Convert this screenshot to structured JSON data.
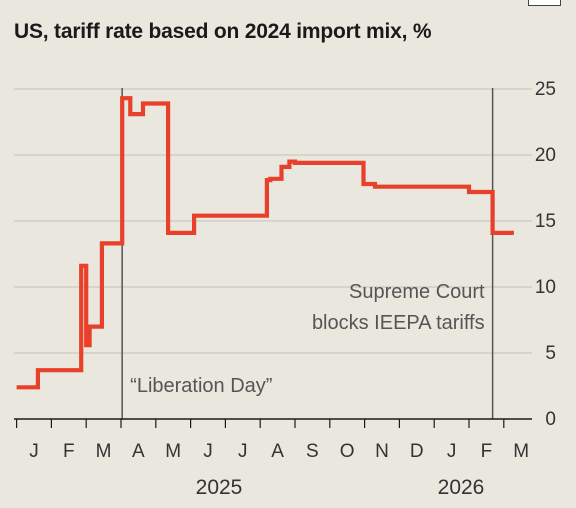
{
  "chart_data": {
    "type": "line",
    "title": "US, tariff rate based on 2024 import mix, %",
    "ylim": [
      0,
      25
    ],
    "y_ticks": [
      "0",
      "5",
      "10",
      "15",
      "20",
      "25"
    ],
    "x_ticks": [
      "J",
      "F",
      "M",
      "A",
      "M",
      "J",
      "J",
      "A",
      "S",
      "O",
      "N",
      "D",
      "J",
      "F",
      "M"
    ],
    "years": [
      "2025",
      "2026"
    ],
    "grid": "horizontal",
    "color": "#e8402b",
    "series": [
      {
        "x": [
          "2025-01-01",
          "2025-01-20",
          "2025-01-20",
          "2025-02-04",
          "2025-02-04",
          "2025-02-25",
          "2025-02-25",
          "2025-03-01",
          "2025-03-01",
          "2025-03-04",
          "2025-03-04",
          "2025-03-06",
          "2025-03-06",
          "2025-03-07",
          "2025-03-07",
          "2025-03-12",
          "2025-03-12",
          "2025-03-15",
          "2025-03-15",
          "2025-04-02",
          "2025-04-02",
          "2025-04-09",
          "2025-04-09",
          "2025-04-12",
          "2025-04-12",
          "2025-04-20",
          "2025-04-20",
          "2025-04-26",
          "2025-04-26",
          "2025-05-12",
          "2025-05-12",
          "2025-06-04",
          "2025-06-04",
          "2025-07-31",
          "2025-07-31",
          "2025-08-07",
          "2025-08-07",
          "2025-08-10",
          "2025-08-10",
          "2025-08-20",
          "2025-08-20",
          "2025-08-27",
          "2025-08-27",
          "2025-09-01",
          "2025-09-01",
          "2025-10-31",
          "2025-10-31",
          "2025-11-10",
          "2025-11-10",
          "2026-02-01",
          "2026-02-01",
          "2026-02-20",
          "2026-02-20",
          "2026-03-10"
        ],
        "y": [
          2.4,
          2.4,
          3.7,
          3.7,
          3.7,
          3.7,
          11.6,
          11.6,
          5.6,
          5.6,
          7.0,
          7.0,
          7.0,
          7.0,
          7.0,
          7.0,
          7.0,
          7.0,
          13.3,
          13.3,
          24.3,
          24.3,
          23.1,
          23.1,
          23.1,
          23.1,
          23.9,
          23.9,
          23.9,
          23.9,
          14.1,
          14.1,
          15.4,
          15.4,
          15.4,
          15.4,
          18.1,
          18.1,
          18.2,
          18.2,
          19.1,
          19.1,
          19.5,
          19.5,
          19.4,
          19.4,
          17.8,
          17.8,
          17.6,
          17.6,
          17.2,
          17.2,
          14.1,
          14.1
        ]
      }
    ],
    "events": [
      {
        "date": "2025-04-02",
        "label": "“Liberation Day”"
      },
      {
        "date": "2026-02-20",
        "label_lines": [
          "Supreme Court",
          "blocks IEEPA tariffs"
        ]
      }
    ]
  }
}
